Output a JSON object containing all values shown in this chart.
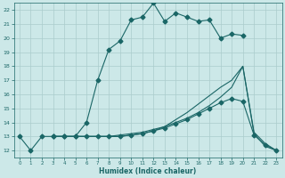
{
  "xlabel": "Humidex (Indice chaleur)",
  "bg_color": "#cce8e8",
  "grid_color": "#aacccc",
  "line_color": "#1a6666",
  "xlim": [
    -0.5,
    23.5
  ],
  "ylim": [
    11.5,
    22.5
  ],
  "xticks": [
    0,
    1,
    2,
    3,
    4,
    5,
    6,
    7,
    8,
    9,
    10,
    11,
    12,
    13,
    14,
    15,
    16,
    17,
    18,
    19,
    20,
    21,
    22,
    23
  ],
  "yticks": [
    12,
    13,
    14,
    15,
    16,
    17,
    18,
    19,
    20,
    21,
    22
  ],
  "lines": [
    {
      "x": [
        0,
        1,
        2,
        3,
        4,
        5,
        6,
        7,
        8,
        9,
        10,
        11,
        12,
        13,
        14,
        15,
        16,
        17,
        18,
        19,
        20
      ],
      "y": [
        13.0,
        12.0,
        13.0,
        13.0,
        13.0,
        13.0,
        14.0,
        17.0,
        19.2,
        19.8,
        21.3,
        21.5,
        22.5,
        21.2,
        21.8,
        21.5,
        21.2,
        21.3,
        20.0,
        20.3,
        20.2
      ],
      "marker": "D",
      "markersize": 2.5,
      "lw": 0.8
    },
    {
      "x": [
        3,
        4,
        5,
        6,
        7,
        8,
        9,
        10,
        11,
        12,
        13,
        14,
        15,
        16,
        17,
        18,
        19,
        20,
        21,
        22,
        23
      ],
      "y": [
        13.0,
        13.0,
        13.0,
        13.0,
        13.0,
        13.0,
        13.1,
        13.2,
        13.3,
        13.5,
        13.7,
        14.0,
        14.3,
        14.7,
        15.2,
        15.8,
        16.5,
        18.0,
        13.3,
        12.5,
        12.0
      ],
      "marker": null,
      "markersize": 0,
      "lw": 0.8
    },
    {
      "x": [
        3,
        4,
        5,
        6,
        7,
        8,
        9,
        10,
        11,
        12,
        13,
        14,
        15,
        16,
        17,
        18,
        19,
        20,
        21,
        22,
        23
      ],
      "y": [
        13.0,
        13.0,
        13.0,
        13.0,
        13.0,
        13.0,
        13.0,
        13.1,
        13.2,
        13.4,
        13.6,
        13.9,
        14.2,
        14.6,
        15.0,
        15.4,
        15.7,
        15.5,
        13.1,
        12.4,
        12.0
      ],
      "marker": "D",
      "markersize": 2.5,
      "lw": 0.8
    },
    {
      "x": [
        3,
        4,
        5,
        6,
        7,
        8,
        9,
        10,
        11,
        12,
        13,
        14,
        15,
        16,
        17,
        18,
        19,
        20,
        21,
        22,
        23
      ],
      "y": [
        13.0,
        13.0,
        13.0,
        13.0,
        13.0,
        13.0,
        13.0,
        13.1,
        13.2,
        13.4,
        13.7,
        14.2,
        14.7,
        15.3,
        15.9,
        16.5,
        17.0,
        18.0,
        13.2,
        12.3,
        12.0
      ],
      "marker": null,
      "markersize": 0,
      "lw": 0.8
    }
  ]
}
